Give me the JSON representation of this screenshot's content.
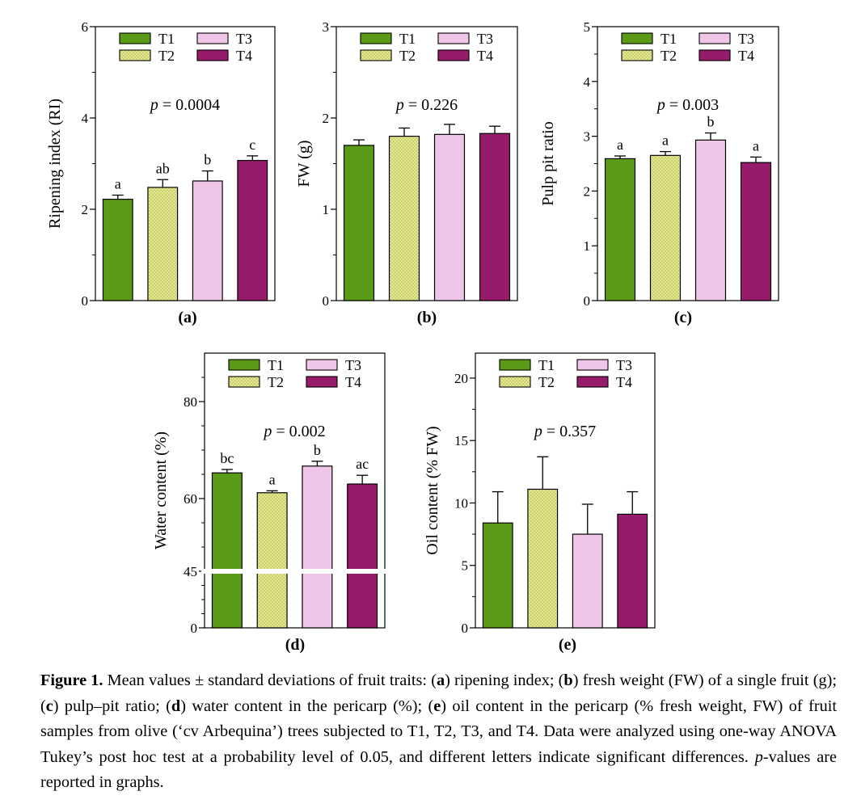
{
  "colors": {
    "T1": "#5a9a16",
    "T2": "#e4e79a",
    "T3": "#efc6e8",
    "T4": "#971b6b"
  },
  "legend": [
    "T1",
    "T3",
    "T2",
    "T4"
  ],
  "chart_data": [
    {
      "panel": "(a)",
      "type": "bar",
      "ylabel": "Ripening index  (RI)",
      "p_text": "= 0.0004",
      "ylim": [
        0,
        6
      ],
      "yticks": [
        0,
        2,
        4,
        6
      ],
      "categories": [
        "T1",
        "T2",
        "T3",
        "T4"
      ],
      "values": [
        2.22,
        2.48,
        2.62,
        3.07
      ],
      "errors": [
        0.09,
        0.17,
        0.22,
        0.1
      ],
      "letters": [
        "a",
        "ab",
        "b",
        "c"
      ]
    },
    {
      "panel": "(b)",
      "type": "bar",
      "ylabel": "FW (g)",
      "p_text": "= 0.226",
      "ylim": [
        0,
        3
      ],
      "yticks": [
        0,
        1,
        2,
        3
      ],
      "categories": [
        "T1",
        "T2",
        "T3",
        "T4"
      ],
      "values": [
        1.7,
        1.8,
        1.82,
        1.83
      ],
      "errors": [
        0.06,
        0.09,
        0.11,
        0.08
      ],
      "letters": [
        "",
        "",
        "",
        ""
      ]
    },
    {
      "panel": "(c)",
      "type": "bar",
      "ylabel": "Pulp pit ratio",
      "p_text": "= 0.003",
      "ylim": [
        0,
        5
      ],
      "yticks": [
        0,
        1,
        2,
        3,
        4,
        5
      ],
      "categories": [
        "T1",
        "T2",
        "T3",
        "T4"
      ],
      "values": [
        2.59,
        2.65,
        2.93,
        2.52
      ],
      "errors": [
        0.05,
        0.07,
        0.13,
        0.1
      ],
      "letters": [
        "a",
        "a",
        "b",
        "a"
      ]
    },
    {
      "panel": "(d)",
      "type": "bar",
      "ylabel": "Water content (%)",
      "p_text": "= 0.002",
      "ylim": [
        0,
        90
      ],
      "yticks": [
        0,
        45,
        60,
        80
      ],
      "broken_axis": true,
      "categories": [
        "T1",
        "T2",
        "T3",
        "T4"
      ],
      "values": [
        65.3,
        61.2,
        66.7,
        63.0
      ],
      "errors": [
        0.7,
        0.4,
        1.0,
        1.8
      ],
      "letters": [
        "bc",
        "a",
        "b",
        "ac"
      ]
    },
    {
      "panel": "(e)",
      "type": "bar",
      "ylabel": "Oil content (% FW)",
      "p_text": "= 0.357",
      "ylim": [
        0,
        22
      ],
      "yticks": [
        0,
        5,
        10,
        15,
        20
      ],
      "categories": [
        "T1",
        "T2",
        "T3",
        "T4"
      ],
      "values": [
        8.4,
        11.1,
        7.5,
        9.1
      ],
      "errors": [
        2.5,
        2.6,
        2.4,
        1.8
      ],
      "letters": [
        "",
        "",
        "",
        ""
      ]
    }
  ],
  "caption": {
    "label": "Figure 1.",
    "s1": " Mean values ± standard deviations of fruit traits: (",
    "a": "a",
    "s2": ") ripening index; (",
    "b": "b",
    "s3": ") fresh weight (FW) of a single fruit (g); (",
    "c": "c",
    "s4": ") pulp–pit ratio; (",
    "d": "d",
    "s5": ") water content in the pericarp (%); (",
    "e": "e",
    "s6": ") oil content in the pericarp (% fresh weight, FW) of fruit samples from olive (‘cv Arbequina’) trees subjected to T1, T2, T3, and T4. Data were analyzed using one-way ANOVA Tukey’s post hoc test at a probability level of 0.05, and different letters indicate significant differences. ",
    "p": "p",
    "s7": "-values are reported in graphs."
  }
}
